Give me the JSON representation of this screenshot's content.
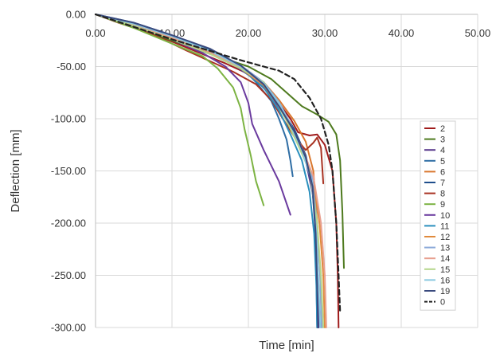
{
  "chart_data": {
    "type": "line",
    "title": "",
    "xlabel": "Time [min]",
    "ylabel": "Deflection [mm]",
    "xlim": [
      0,
      50
    ],
    "ylim": [
      -300,
      0
    ],
    "x_ticks": [
      "0.00",
      "10.00",
      "20.00",
      "30.00",
      "40.00",
      "50.00"
    ],
    "y_ticks": [
      "0.00",
      "-50.00",
      "-100.00",
      "-150.00",
      "-200.00",
      "-250.00",
      "-300.00"
    ],
    "grid": true,
    "legend_position": "right",
    "series": [
      {
        "name": "2",
        "color": "#a01c1c",
        "dash": "solid",
        "points": [
          [
            0,
            0
          ],
          [
            3,
            -8
          ],
          [
            8,
            -20
          ],
          [
            13,
            -35
          ],
          [
            17,
            -47
          ],
          [
            20,
            -57
          ],
          [
            22,
            -68
          ],
          [
            24,
            -85
          ],
          [
            25.5,
            -100
          ],
          [
            26.5,
            -113
          ],
          [
            28,
            -116
          ],
          [
            29,
            -115
          ],
          [
            30,
            -125
          ],
          [
            31,
            -150
          ],
          [
            31.5,
            -200
          ],
          [
            31.7,
            -250
          ],
          [
            31.8,
            -300
          ]
        ]
      },
      {
        "name": "3",
        "color": "#4e7a1e",
        "dash": "solid",
        "points": [
          [
            0,
            0
          ],
          [
            5,
            -12
          ],
          [
            10,
            -25
          ],
          [
            15,
            -38
          ],
          [
            20,
            -50
          ],
          [
            23,
            -62
          ],
          [
            25,
            -75
          ],
          [
            27,
            -88
          ],
          [
            29,
            -96
          ],
          [
            30.5,
            -103
          ],
          [
            31.5,
            -115
          ],
          [
            32,
            -140
          ],
          [
            32.3,
            -190
          ],
          [
            32.5,
            -243
          ]
        ]
      },
      {
        "name": "4",
        "color": "#5a3a8e",
        "dash": "solid",
        "points": [
          [
            0,
            0
          ],
          [
            5,
            -10
          ],
          [
            10,
            -22
          ],
          [
            15,
            -35
          ],
          [
            18,
            -48
          ],
          [
            21,
            -63
          ],
          [
            23,
            -78
          ],
          [
            24.5,
            -95
          ],
          [
            26,
            -115
          ],
          [
            27.5,
            -140
          ],
          [
            28.5,
            -175
          ],
          [
            29,
            -220
          ],
          [
            29.1,
            -260
          ],
          [
            29.2,
            -300
          ]
        ]
      },
      {
        "name": "5",
        "color": "#2e6da4",
        "dash": "solid",
        "points": [
          [
            0,
            0
          ],
          [
            5,
            -8
          ],
          [
            10,
            -20
          ],
          [
            15,
            -35
          ],
          [
            19,
            -50
          ],
          [
            21,
            -65
          ],
          [
            23,
            -83
          ],
          [
            24,
            -100
          ],
          [
            25,
            -120
          ],
          [
            25.5,
            -140
          ],
          [
            25.8,
            -155
          ]
        ]
      },
      {
        "name": "6",
        "color": "#d9772e",
        "dash": "solid",
        "points": [
          [
            0,
            0
          ],
          [
            5,
            -10
          ],
          [
            10,
            -22
          ],
          [
            15,
            -37
          ],
          [
            19,
            -51
          ],
          [
            22,
            -65
          ],
          [
            24,
            -82
          ],
          [
            26,
            -102
          ],
          [
            27.5,
            -122
          ],
          [
            28.5,
            -150
          ],
          [
            29,
            -200
          ],
          [
            29.4,
            -250
          ],
          [
            29.6,
            -300
          ]
        ]
      },
      {
        "name": "7",
        "color": "#1f4e8c",
        "dash": "solid",
        "points": [
          [
            0,
            0
          ],
          [
            5,
            -9
          ],
          [
            10,
            -21
          ],
          [
            15,
            -34
          ],
          [
            19,
            -50
          ],
          [
            22,
            -67
          ],
          [
            24,
            -87
          ],
          [
            26,
            -110
          ],
          [
            27.5,
            -135
          ],
          [
            28.3,
            -160
          ],
          [
            28.7,
            -200
          ],
          [
            28.9,
            -250
          ],
          [
            29,
            -300
          ]
        ]
      },
      {
        "name": "8",
        "color": "#a83222",
        "dash": "solid",
        "points": [
          [
            0,
            0
          ],
          [
            4,
            -9
          ],
          [
            8,
            -21
          ],
          [
            12,
            -35
          ],
          [
            15,
            -45
          ],
          [
            18,
            -55
          ],
          [
            21,
            -67
          ],
          [
            23,
            -82
          ],
          [
            24.5,
            -100
          ],
          [
            26,
            -117
          ],
          [
            27.5,
            -130
          ],
          [
            28.5,
            -123
          ],
          [
            29,
            -118
          ],
          [
            29.5,
            -128
          ],
          [
            29.7,
            -150
          ],
          [
            29.8,
            -162
          ]
        ]
      },
      {
        "name": "9",
        "color": "#7cb342",
        "dash": "solid",
        "points": [
          [
            0,
            0
          ],
          [
            5,
            -13
          ],
          [
            10,
            -28
          ],
          [
            14,
            -40
          ],
          [
            16,
            -52
          ],
          [
            18,
            -70
          ],
          [
            19,
            -90
          ],
          [
            19.5,
            -110
          ],
          [
            20.3,
            -135
          ],
          [
            21,
            -160
          ],
          [
            22,
            -183
          ]
        ]
      },
      {
        "name": "10",
        "color": "#6a3a9e",
        "dash": "solid",
        "points": [
          [
            0,
            0
          ],
          [
            5,
            -11
          ],
          [
            10,
            -24
          ],
          [
            14,
            -37
          ],
          [
            17,
            -50
          ],
          [
            19,
            -65
          ],
          [
            20,
            -85
          ],
          [
            20.5,
            -105
          ],
          [
            22,
            -130
          ],
          [
            24,
            -160
          ],
          [
            25.5,
            -192
          ]
        ]
      },
      {
        "name": "11",
        "color": "#2a8fbd",
        "dash": "solid",
        "points": [
          [
            0,
            0
          ],
          [
            5,
            -9
          ],
          [
            10,
            -22
          ],
          [
            15,
            -36
          ],
          [
            19,
            -52
          ],
          [
            22,
            -70
          ],
          [
            24,
            -92
          ],
          [
            25.5,
            -115
          ],
          [
            27,
            -140
          ],
          [
            28,
            -170
          ],
          [
            28.6,
            -210
          ],
          [
            28.9,
            -260
          ],
          [
            29,
            -300
          ]
        ]
      },
      {
        "name": "12",
        "color": "#e08a3c",
        "dash": "solid",
        "points": [
          [
            0,
            0
          ],
          [
            5,
            -10
          ],
          [
            10,
            -23
          ],
          [
            15,
            -37
          ],
          [
            19,
            -52
          ],
          [
            22,
            -68
          ],
          [
            24,
            -88
          ],
          [
            25.5,
            -108
          ],
          [
            27,
            -130
          ],
          [
            28.5,
            -155
          ],
          [
            29.3,
            -200
          ],
          [
            29.8,
            -250
          ],
          [
            30,
            -300
          ]
        ]
      },
      {
        "name": "13",
        "color": "#8aa8d8",
        "dash": "solid",
        "points": [
          [
            0,
            0
          ],
          [
            5,
            -9
          ],
          [
            10,
            -21
          ],
          [
            15,
            -35
          ],
          [
            19,
            -49
          ],
          [
            22,
            -65
          ],
          [
            24,
            -84
          ],
          [
            25.5,
            -105
          ],
          [
            27,
            -128
          ],
          [
            28.3,
            -155
          ],
          [
            29,
            -200
          ],
          [
            29.4,
            -250
          ],
          [
            29.6,
            -300
          ]
        ]
      },
      {
        "name": "14",
        "color": "#e8a090",
        "dash": "solid",
        "points": [
          [
            0,
            0
          ],
          [
            5,
            -10
          ],
          [
            10,
            -22
          ],
          [
            15,
            -36
          ],
          [
            19,
            -51
          ],
          [
            22,
            -67
          ],
          [
            24,
            -86
          ],
          [
            25.5,
            -106
          ],
          [
            27,
            -128
          ],
          [
            28.5,
            -155
          ],
          [
            29.5,
            -200
          ],
          [
            30,
            -250
          ],
          [
            30.2,
            -300
          ]
        ]
      },
      {
        "name": "15",
        "color": "#b5d68c",
        "dash": "solid",
        "points": [
          [
            0,
            0
          ],
          [
            5,
            -11
          ],
          [
            10,
            -24
          ],
          [
            15,
            -38
          ],
          [
            19,
            -52
          ],
          [
            22,
            -65
          ],
          [
            23.5,
            -82
          ],
          [
            25,
            -102
          ],
          [
            26.5,
            -125
          ],
          [
            28,
            -150
          ],
          [
            29,
            -200
          ],
          [
            29.5,
            -250
          ],
          [
            29.8,
            -300
          ]
        ]
      },
      {
        "name": "16",
        "color": "#88c8e0",
        "dash": "solid",
        "points": [
          [
            0,
            0
          ],
          [
            5,
            -9
          ],
          [
            10,
            -21
          ],
          [
            15,
            -35
          ],
          [
            19,
            -50
          ],
          [
            22,
            -66
          ],
          [
            24,
            -85
          ],
          [
            25.5,
            -106
          ],
          [
            27,
            -130
          ],
          [
            28.3,
            -160
          ],
          [
            28.9,
            -210
          ],
          [
            29.2,
            -260
          ],
          [
            29.4,
            -300
          ]
        ]
      },
      {
        "name": "19",
        "color": "#3a4a7e",
        "dash": "solid",
        "points": [
          [
            0,
            0
          ],
          [
            5,
            -8
          ],
          [
            10,
            -20
          ],
          [
            15,
            -33
          ],
          [
            19,
            -49
          ],
          [
            22,
            -67
          ],
          [
            24,
            -88
          ],
          [
            26,
            -112
          ],
          [
            27.5,
            -137
          ],
          [
            28.4,
            -165
          ],
          [
            28.8,
            -210
          ],
          [
            29,
            -260
          ],
          [
            29.1,
            -300
          ]
        ]
      },
      {
        "name": "0",
        "color": "#222222",
        "dash": "dashed",
        "points": [
          [
            0,
            0
          ],
          [
            5,
            -12
          ],
          [
            10,
            -24
          ],
          [
            15,
            -35
          ],
          [
            19,
            -44
          ],
          [
            22,
            -50
          ],
          [
            24,
            -54
          ],
          [
            26,
            -62
          ],
          [
            28,
            -80
          ],
          [
            29.5,
            -100
          ],
          [
            30.5,
            -125
          ],
          [
            31,
            -150
          ],
          [
            31.5,
            -200
          ],
          [
            31.8,
            -250
          ],
          [
            32,
            -285
          ]
        ]
      }
    ]
  }
}
